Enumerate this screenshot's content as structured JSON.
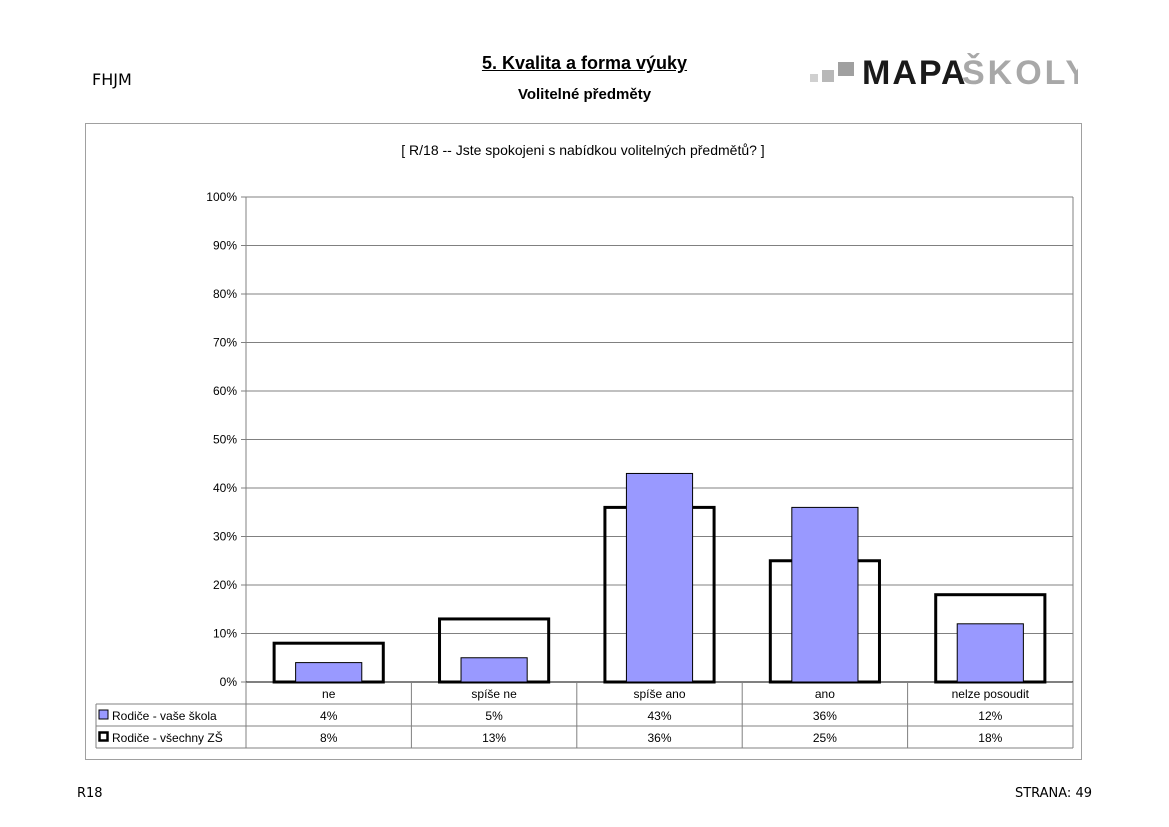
{
  "header": {
    "code": "FHJM",
    "title": "5. Kvalita a forma výuky",
    "subtitle": "Volitelné předměty",
    "logo": {
      "dark_text": "MAPA",
      "light_text": "ŠKOLY",
      "dark_color": "#1a1a1a",
      "light_color": "#a8a8a8"
    }
  },
  "footer": {
    "left": "R18",
    "right": "STRANA: 49"
  },
  "chart_data": {
    "type": "bar",
    "title": "[ R/18 -- Jste spokojeni s nabídkou volitelných předmětů? ]",
    "categories": [
      "ne",
      "spíše ne",
      "spíše ano",
      "ano",
      "nelze posoudit"
    ],
    "series": [
      {
        "name": "Rodiče - vaše škola",
        "values": [
          4,
          5,
          43,
          36,
          12
        ],
        "labels": [
          "4%",
          "5%",
          "43%",
          "36%",
          "12%"
        ],
        "style": "filled",
        "color": "#9999ff"
      },
      {
        "name": "Rodiče - všechny ZŠ",
        "values": [
          8,
          13,
          36,
          25,
          18
        ],
        "labels": [
          "8%",
          "13%",
          "36%",
          "25%",
          "18%"
        ],
        "style": "outline",
        "color": "#000000"
      }
    ],
    "ylim": [
      0,
      100
    ],
    "yticks": [
      "0%",
      "10%",
      "20%",
      "30%",
      "40%",
      "50%",
      "60%",
      "70%",
      "80%",
      "90%",
      "100%"
    ],
    "grid": true,
    "legend": "data table below chart"
  }
}
